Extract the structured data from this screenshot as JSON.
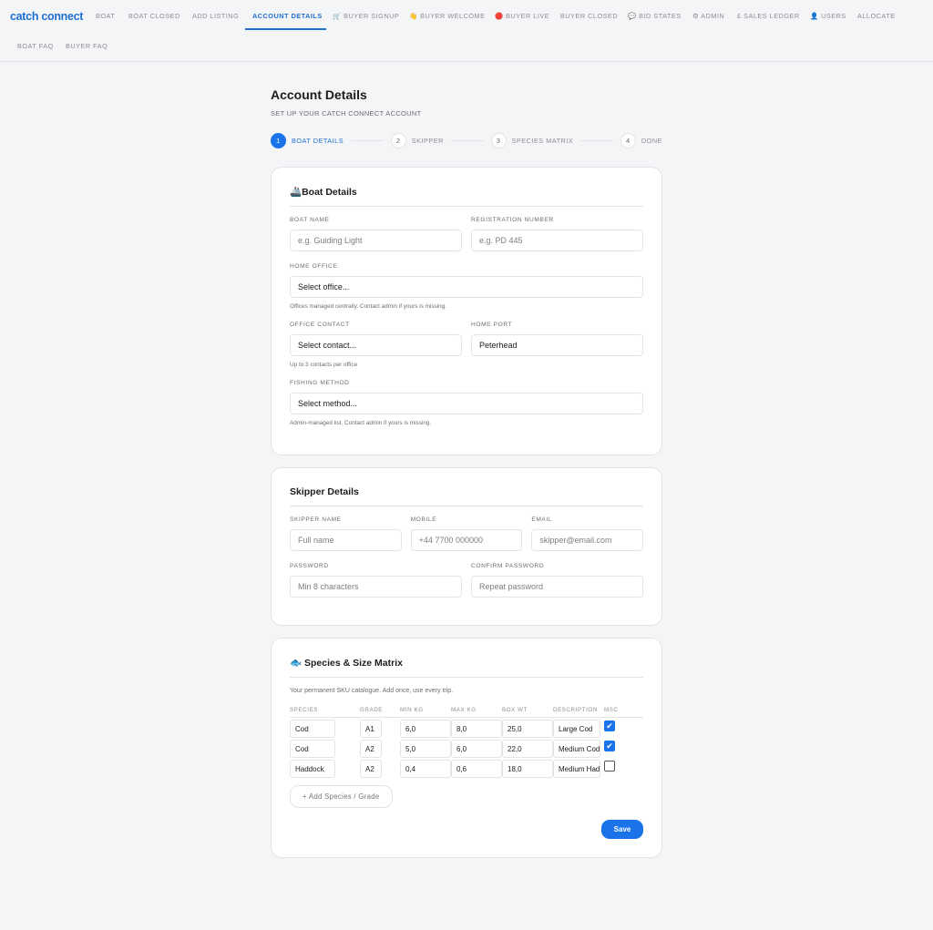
{
  "nav": {
    "brand": "catch connect",
    "items": [
      {
        "label": "BOAT"
      },
      {
        "label": "BOAT CLOSED"
      },
      {
        "label": "ADD LISTING"
      },
      {
        "label": "ACCOUNT DETAILS",
        "active": true
      },
      {
        "label": "🛒 BUYER SIGNUP"
      },
      {
        "label": "👋 BUYER WELCOME"
      },
      {
        "label": "🔴 BUYER LIVE"
      },
      {
        "label": "BUYER CLOSED"
      },
      {
        "label": "💬 BID STATES"
      },
      {
        "label": "⚙ ADMIN"
      },
      {
        "label": "£ SALES LEDGER"
      },
      {
        "label": "👤 USERS"
      },
      {
        "label": "ALLOCATE"
      },
      {
        "label": "BOAT FAQ"
      },
      {
        "label": "BUYER FAQ"
      }
    ]
  },
  "page": {
    "title": "Account Details",
    "subtitle": "SET UP YOUR CATCH CONNECT ACCOUNT"
  },
  "steps": [
    {
      "num": "1",
      "label": "BOAT DETAILS"
    },
    {
      "num": "2",
      "label": "SKIPPER"
    },
    {
      "num": "3",
      "label": "SPECIES MATRIX"
    },
    {
      "num": "4",
      "label": "DONE"
    }
  ],
  "boat": {
    "title": "🚢Boat Details",
    "boat_name": {
      "label": "BOAT NAME",
      "placeholder": "e.g. Guiding Light"
    },
    "reg": {
      "label": "REGISTRATION NUMBER",
      "placeholder": "e.g. PD 445"
    },
    "office": {
      "label": "HOME OFFICE",
      "value": "Select office...",
      "hint": "Offices managed centrally. Contact admin if yours is missing."
    },
    "contact": {
      "label": "OFFICE CONTACT",
      "value": "Select contact...",
      "hint": "Up to 3 contacts per office"
    },
    "port": {
      "label": "HOME PORT",
      "value": "Peterhead"
    },
    "method": {
      "label": "FISHING METHOD",
      "value": "Select method...",
      "hint": "Admin-managed list. Contact admin if yours is missing."
    }
  },
  "skipper": {
    "title": "Skipper Details",
    "name": {
      "label": "SKIPPER NAME",
      "placeholder": "Full name"
    },
    "mobile": {
      "label": "MOBILE",
      "placeholder": "+44 7700 000000"
    },
    "email": {
      "label": "EMAIL",
      "placeholder": "skipper@email.com"
    },
    "password": {
      "label": "PASSWORD",
      "placeholder": "Min 8 characters"
    },
    "confirm": {
      "label": "CONFIRM PASSWORD",
      "placeholder": "Repeat password"
    }
  },
  "species": {
    "title": "🐟 Species & Size Matrix",
    "intro": "Your permanent SKU catalogue. Add once, use every trip.",
    "columns": [
      "SPECIES",
      "GRADE",
      "MIN KG",
      "MAX KG",
      "BOX WT",
      "DESCRIPTION",
      "MSC"
    ],
    "rows": [
      {
        "species": "Cod",
        "grade": "A1",
        "min": "6,0",
        "max": "8,0",
        "box": "25,0",
        "desc": "Large Cod",
        "msc": true
      },
      {
        "species": "Cod",
        "grade": "A2",
        "min": "5,0",
        "max": "6,0",
        "box": "22,0",
        "desc": "Medium Cod",
        "msc": true
      },
      {
        "species": "Haddock",
        "grade": "A2",
        "min": "0,4",
        "max": "0,6",
        "box": "18,0",
        "desc": "Medium Haddock",
        "msc": false
      }
    ],
    "add_label": "+ Add Species / Grade",
    "save_label": "Save"
  },
  "colors": {
    "accent": "#1a73e8",
    "background": "#f4f5f7"
  }
}
